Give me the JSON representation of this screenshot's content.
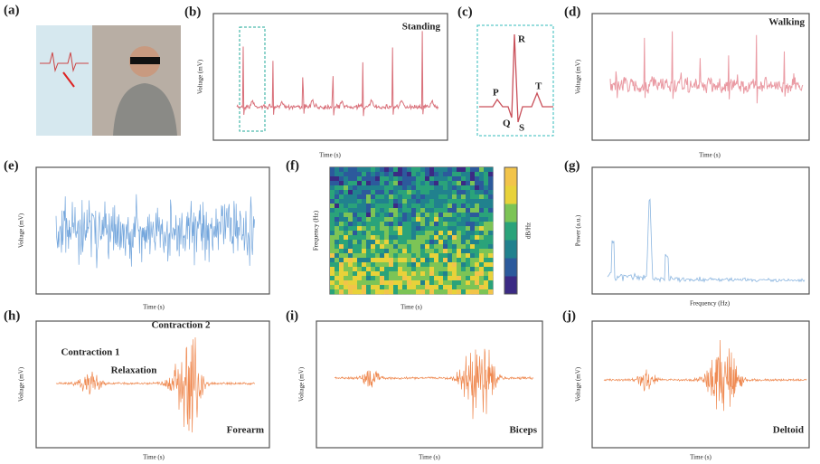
{
  "panels": [
    {
      "label": "(a)"
    },
    {
      "label": "(b)",
      "annotation": "Standing",
      "x_label": "Time (s)",
      "y_label": "Voltage (mV)"
    },
    {
      "label": "(c)",
      "annotations": [
        "R",
        "P",
        "T",
        "Q",
        "S"
      ]
    },
    {
      "label": "(d)",
      "annotation": "Walking",
      "x_label": "Time (s)",
      "y_label": "Voltage (mV)"
    },
    {
      "label": "(e)",
      "x_label": "Time (s)",
      "y_label": "Voltage (mV)"
    },
    {
      "label": "(f)",
      "x_label": "Time (s)",
      "y_label": "Frequency (Hz)",
      "colorbar_label": "dB/Hz"
    },
    {
      "label": "(g)",
      "x_label": "Frequency (Hz)",
      "y_label": "Power (a.u.)"
    },
    {
      "label": "(h)",
      "annotations": [
        "Contraction 2",
        "Contraction 1",
        "Relaxation"
      ],
      "site": "Forearm",
      "x_label": "Time (s)",
      "y_label": "Voltage (mV)"
    },
    {
      "label": "(i)",
      "site": "Biceps",
      "x_label": "Time (s)",
      "y_label": "Voltage (mV)"
    },
    {
      "label": "(j)",
      "site": "Deltoid",
      "x_label": "Time (s)",
      "y_label": "Voltage (mV)"
    }
  ]
}
